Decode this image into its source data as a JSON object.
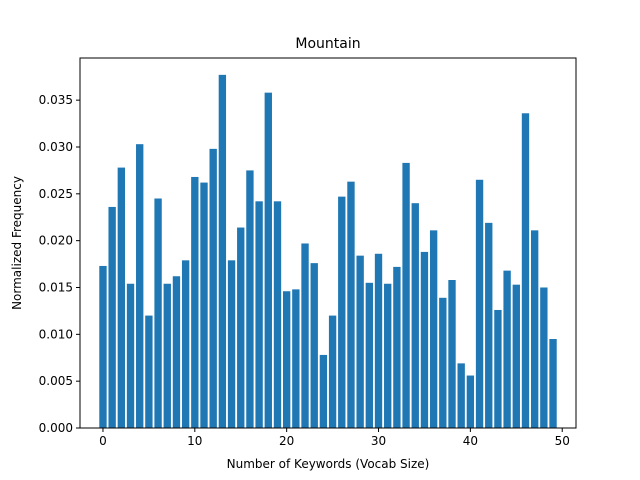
{
  "chart_data": {
    "type": "bar",
    "title": "Mountain",
    "xlabel": "Number of Keywords (Vocab Size)",
    "ylabel": "Normalized Frequency",
    "xlim": [
      -2.5,
      51.5
    ],
    "ylim": [
      0,
      0.0395
    ],
    "x_ticks": [
      0,
      10,
      20,
      30,
      40,
      50
    ],
    "x_tick_labels": [
      "0",
      "10",
      "20",
      "30",
      "40",
      "50"
    ],
    "y_ticks": [
      0,
      0.005,
      0.01,
      0.015,
      0.02,
      0.025,
      0.03,
      0.035
    ],
    "y_tick_labels": [
      "0.000",
      "0.005",
      "0.010",
      "0.015",
      "0.020",
      "0.025",
      "0.030",
      "0.035"
    ],
    "grid": false,
    "bar_color": "#1f77b4",
    "x": [
      0,
      1,
      2,
      3,
      4,
      5,
      6,
      7,
      8,
      9,
      10,
      11,
      12,
      13,
      14,
      15,
      16,
      17,
      18,
      19,
      20,
      21,
      22,
      23,
      24,
      25,
      26,
      27,
      28,
      29,
      30,
      31,
      32,
      33,
      34,
      35,
      36,
      37,
      38,
      39,
      40,
      41,
      42,
      43,
      44,
      45,
      46,
      47,
      48,
      49
    ],
    "values": [
      0.0173,
      0.0236,
      0.0278,
      0.0154,
      0.0303,
      0.012,
      0.0245,
      0.0154,
      0.0162,
      0.0179,
      0.0268,
      0.0262,
      0.0298,
      0.0377,
      0.0179,
      0.0214,
      0.0275,
      0.0242,
      0.0358,
      0.0242,
      0.0146,
      0.0148,
      0.0197,
      0.0176,
      0.0078,
      0.012,
      0.0247,
      0.0263,
      0.0184,
      0.0155,
      0.0186,
      0.0154,
      0.0172,
      0.0283,
      0.024,
      0.0188,
      0.0211,
      0.0139,
      0.0158,
      0.0069,
      0.0056,
      0.0265,
      0.0219,
      0.0126,
      0.0168,
      0.0153,
      0.0336,
      0.0211,
      0.015,
      0.0095
    ]
  }
}
